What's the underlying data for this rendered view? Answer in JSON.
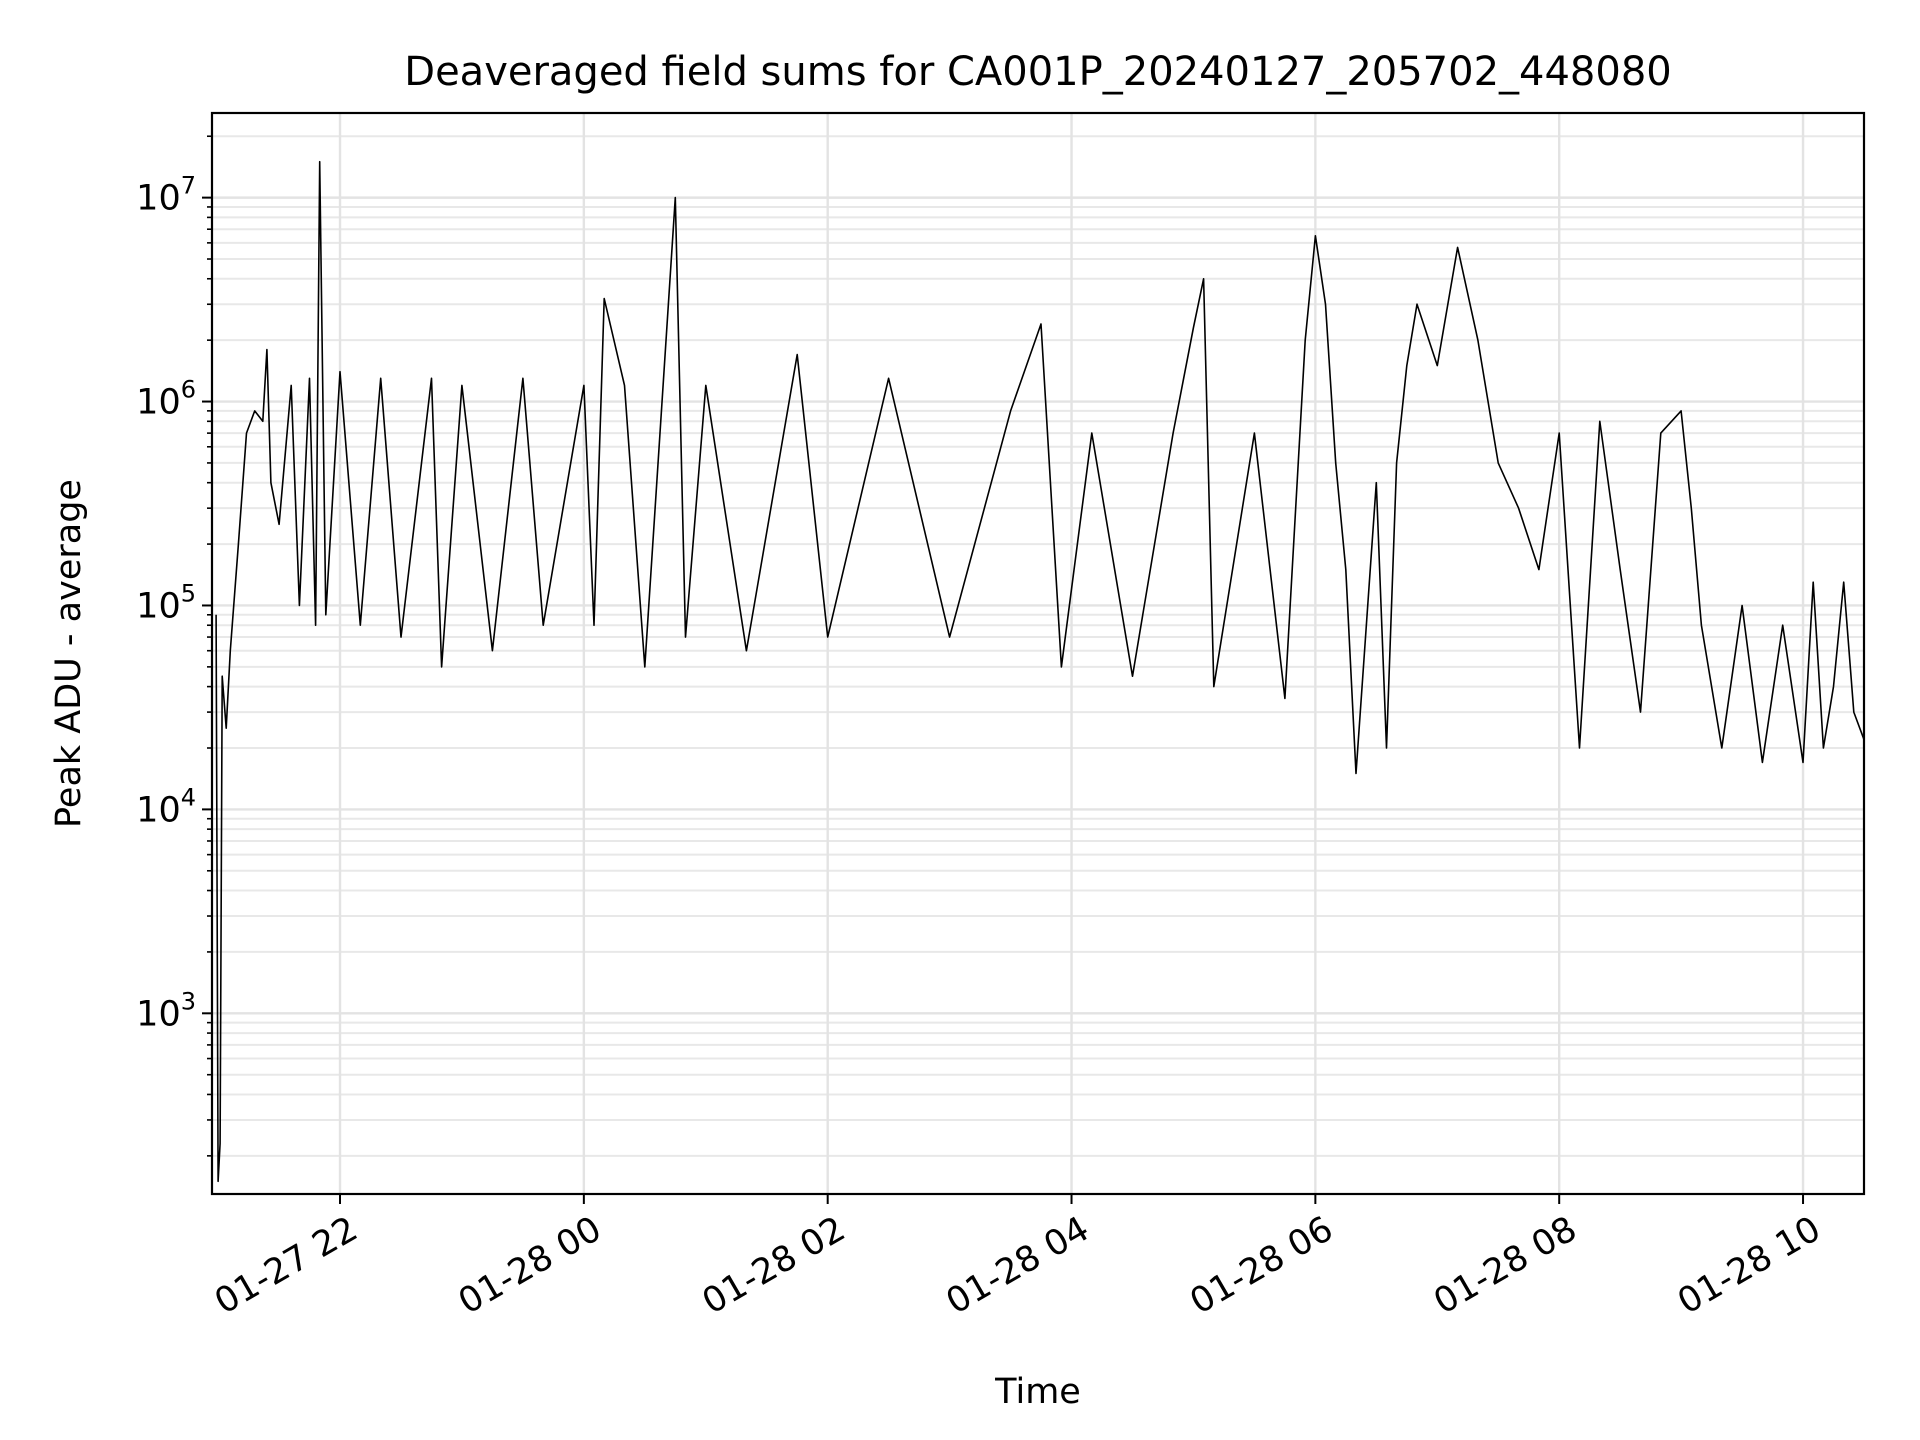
{
  "chart_data": {
    "type": "line",
    "title": "Deaveraged field sums for CA001P_20240127_205702_448080",
    "xlabel": "Time",
    "ylabel": "Peak ADU - average",
    "yscale": "log",
    "grid": true,
    "xlim": [
      "2024-01-27 20:57",
      "2024-01-28 10:30"
    ],
    "ylim": [
      130,
      26000000
    ],
    "x_ticks": [
      {
        "value": "2024-01-27 22:00",
        "label": "01-27 22"
      },
      {
        "value": "2024-01-28 00:00",
        "label": "01-28 00"
      },
      {
        "value": "2024-01-28 02:00",
        "label": "01-28 02"
      },
      {
        "value": "2024-01-28 04:00",
        "label": "01-28 04"
      },
      {
        "value": "2024-01-28 06:00",
        "label": "01-28 06"
      },
      {
        "value": "2024-01-28 08:00",
        "label": "01-28 08"
      },
      {
        "value": "2024-01-28 10:00",
        "label": "01-28 10"
      }
    ],
    "y_ticks": [
      {
        "value": 1000,
        "base": "10",
        "exp": "3"
      },
      {
        "value": 10000,
        "base": "10",
        "exp": "4"
      },
      {
        "value": 100000,
        "base": "10",
        "exp": "5"
      },
      {
        "value": 1000000,
        "base": "10",
        "exp": "6"
      },
      {
        "value": 10000000,
        "base": "10",
        "exp": "7"
      }
    ],
    "series": [
      {
        "color": "#000000",
        "points": [
          [
            "2024-01-27 20:59",
            90000
          ],
          [
            "2024-01-27 21:00",
            150
          ],
          [
            "2024-01-27 21:01",
            230
          ],
          [
            "2024-01-27 21:02",
            45000
          ],
          [
            "2024-01-27 21:04",
            25000
          ],
          [
            "2024-01-27 21:06",
            60000
          ],
          [
            "2024-01-27 21:10",
            200000
          ],
          [
            "2024-01-27 21:14",
            700000
          ],
          [
            "2024-01-27 21:18",
            900000
          ],
          [
            "2024-01-27 21:22",
            800000
          ],
          [
            "2024-01-27 21:24",
            1800000
          ],
          [
            "2024-01-27 21:26",
            400000
          ],
          [
            "2024-01-27 21:30",
            250000
          ],
          [
            "2024-01-27 21:36",
            1200000
          ],
          [
            "2024-01-27 21:40",
            100000
          ],
          [
            "2024-01-27 21:45",
            1300000
          ],
          [
            "2024-01-27 21:48",
            80000
          ],
          [
            "2024-01-27 21:50",
            15000000
          ],
          [
            "2024-01-27 21:53",
            90000
          ],
          [
            "2024-01-27 22:00",
            1400000
          ],
          [
            "2024-01-27 22:10",
            80000
          ],
          [
            "2024-01-27 22:20",
            1300000
          ],
          [
            "2024-01-27 22:30",
            70000
          ],
          [
            "2024-01-27 22:45",
            1300000
          ],
          [
            "2024-01-27 22:50",
            50000
          ],
          [
            "2024-01-27 23:00",
            1200000
          ],
          [
            "2024-01-27 23:15",
            60000
          ],
          [
            "2024-01-27 23:30",
            1300000
          ],
          [
            "2024-01-27 23:40",
            80000
          ],
          [
            "2024-01-28 00:00",
            1200000
          ],
          [
            "2024-01-28 00:05",
            80000
          ],
          [
            "2024-01-28 00:10",
            3200000
          ],
          [
            "2024-01-28 00:20",
            1200000
          ],
          [
            "2024-01-28 00:30",
            50000
          ],
          [
            "2024-01-28 00:45",
            10000000
          ],
          [
            "2024-01-28 00:50",
            70000
          ],
          [
            "2024-01-28 01:00",
            1200000
          ],
          [
            "2024-01-28 01:20",
            60000
          ],
          [
            "2024-01-28 01:45",
            1700000
          ],
          [
            "2024-01-28 02:00",
            70000
          ],
          [
            "2024-01-28 02:30",
            1300000
          ],
          [
            "2024-01-28 03:00",
            70000
          ],
          [
            "2024-01-28 03:30",
            900000
          ],
          [
            "2024-01-28 03:45",
            2400000
          ],
          [
            "2024-01-28 03:55",
            50000
          ],
          [
            "2024-01-28 04:10",
            700000
          ],
          [
            "2024-01-28 04:30",
            45000
          ],
          [
            "2024-01-28 04:50",
            700000
          ],
          [
            "2024-01-28 05:00",
            2300000
          ],
          [
            "2024-01-28 05:05",
            4000000
          ],
          [
            "2024-01-28 05:10",
            40000
          ],
          [
            "2024-01-28 05:30",
            700000
          ],
          [
            "2024-01-28 05:45",
            35000
          ],
          [
            "2024-01-28 05:55",
            2000000
          ],
          [
            "2024-01-28 06:00",
            6500000
          ],
          [
            "2024-01-28 06:05",
            3000000
          ],
          [
            "2024-01-28 06:10",
            500000
          ],
          [
            "2024-01-28 06:15",
            150000
          ],
          [
            "2024-01-28 06:20",
            15000
          ],
          [
            "2024-01-28 06:30",
            400000
          ],
          [
            "2024-01-28 06:35",
            20000
          ],
          [
            "2024-01-28 06:40",
            500000
          ],
          [
            "2024-01-28 06:45",
            1500000
          ],
          [
            "2024-01-28 06:50",
            3000000
          ],
          [
            "2024-01-28 07:00",
            1500000
          ],
          [
            "2024-01-28 07:10",
            5700000
          ],
          [
            "2024-01-28 07:20",
            2000000
          ],
          [
            "2024-01-28 07:30",
            500000
          ],
          [
            "2024-01-28 07:40",
            300000
          ],
          [
            "2024-01-28 07:50",
            150000
          ],
          [
            "2024-01-28 08:00",
            700000
          ],
          [
            "2024-01-28 08:10",
            20000
          ],
          [
            "2024-01-28 08:20",
            800000
          ],
          [
            "2024-01-28 08:30",
            150000
          ],
          [
            "2024-01-28 08:40",
            30000
          ],
          [
            "2024-01-28 08:50",
            700000
          ],
          [
            "2024-01-28 09:00",
            900000
          ],
          [
            "2024-01-28 09:05",
            300000
          ],
          [
            "2024-01-28 09:10",
            80000
          ],
          [
            "2024-01-28 09:20",
            20000
          ],
          [
            "2024-01-28 09:30",
            100000
          ],
          [
            "2024-01-28 09:40",
            17000
          ],
          [
            "2024-01-28 09:50",
            80000
          ],
          [
            "2024-01-28 10:00",
            17000
          ],
          [
            "2024-01-28 10:05",
            130000
          ],
          [
            "2024-01-28 10:10",
            20000
          ],
          [
            "2024-01-28 10:15",
            40000
          ],
          [
            "2024-01-28 10:20",
            130000
          ],
          [
            "2024-01-28 10:25",
            30000
          ],
          [
            "2024-01-28 10:30",
            22000
          ]
        ]
      }
    ]
  }
}
